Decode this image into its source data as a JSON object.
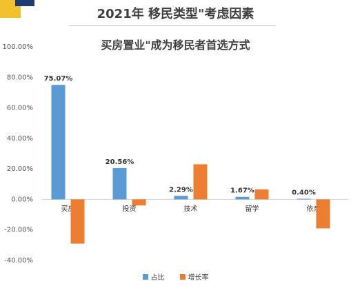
{
  "header": {
    "title": "2021年 移民类型\"考虑因素",
    "subtitle": "买房置业\"成为移民者首选方式"
  },
  "colors": {
    "share": "#5b9bd5",
    "growth": "#ed7d31",
    "accent_yellow": "#f2c12e",
    "accent_navy": "#1f3a6e"
  },
  "chart_data": {
    "type": "bar",
    "title": "2021年 移民类型\"考虑因素",
    "subtitle": "买房置业\"成为移民者首选方式",
    "categories": [
      "买房",
      "投资",
      "技术",
      "留学",
      "依亲"
    ],
    "series": [
      {
        "name": "占比",
        "values": [
          75.07,
          20.56,
          2.29,
          1.67,
          0.4
        ],
        "data_labels": [
          "75.07%",
          "20.56%",
          "2.29%",
          "1.67%",
          "0.40%"
        ]
      },
      {
        "name": "增长率",
        "values": [
          -29,
          -4,
          23,
          6.5,
          -19
        ]
      }
    ],
    "ylim": [
      -40,
      100
    ],
    "yticks": [
      -40,
      -20,
      0,
      20,
      40,
      60,
      80,
      100
    ],
    "ytick_labels": [
      "-40.00%",
      "-20.00%",
      "0.00%",
      "20.00%",
      "40.00%",
      "60.00%",
      "80.00%",
      "100.00%"
    ],
    "grid": false,
    "legend_position": "bottom"
  }
}
